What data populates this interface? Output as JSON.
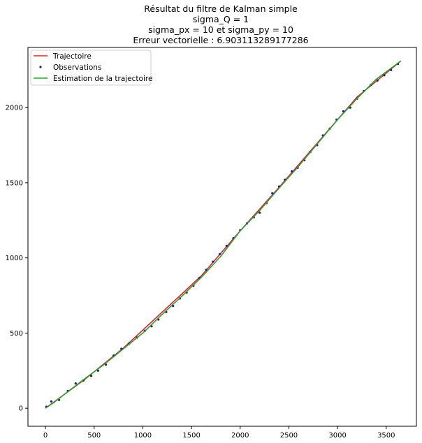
{
  "chart_data": {
    "type": "line",
    "title_lines": [
      "Résultat du filtre de Kalman simple",
      "sigma_Q = 1",
      "sigma_px = 10 et sigma_py = 10",
      "Erreur vectorielle : 6.903113289177286"
    ],
    "xlabel": "",
    "ylabel": "",
    "xlim": [
      -180,
      3810
    ],
    "ylim": [
      -120,
      2400
    ],
    "xticks": [
      0,
      500,
      1000,
      1500,
      2000,
      2500,
      3000,
      3500
    ],
    "yticks": [
      0,
      500,
      1000,
      1500,
      2000
    ],
    "grid": false,
    "legend_position": "top-left",
    "series": [
      {
        "name": "Trajectoire",
        "kind": "line",
        "color": "#d62728",
        "x": [
          0,
          400,
          800,
          1200,
          1600,
          2000,
          2400,
          2800,
          3200,
          3650
        ],
        "y": [
          0,
          190,
          400,
          640,
          880,
          1180,
          1470,
          1770,
          2070,
          2310
        ]
      },
      {
        "name": "Observations",
        "kind": "scatter",
        "color": "#1a1a9e",
        "x": [
          10,
          60,
          140,
          230,
          310,
          390,
          470,
          540,
          620,
          700,
          780,
          860,
          940,
          1020,
          1090,
          1160,
          1240,
          1310,
          1380,
          1450,
          1520,
          1580,
          1650,
          1720,
          1790,
          1860,
          1930,
          2000,
          2070,
          2140,
          2200,
          2270,
          2330,
          2400,
          2460,
          2530,
          2590,
          2660,
          2720,
          2790,
          2850,
          2920,
          2990,
          3060,
          3130,
          3200,
          3270,
          3340,
          3410,
          3480,
          3550,
          3620
        ],
        "y": [
          10,
          45,
          55,
          115,
          165,
          185,
          215,
          250,
          290,
          350,
          395,
          430,
          470,
          515,
          545,
          590,
          640,
          680,
          730,
          770,
          815,
          865,
          920,
          975,
          1025,
          1080,
          1130,
          1185,
          1230,
          1270,
          1300,
          1365,
          1430,
          1475,
          1520,
          1575,
          1600,
          1650,
          1705,
          1750,
          1815,
          1860,
          1920,
          1975,
          2000,
          2060,
          2110,
          2150,
          2180,
          2215,
          2250,
          2290
        ]
      },
      {
        "name": "Estimation de la trajectoire",
        "kind": "line",
        "color": "#2ca02c",
        "x": [
          0,
          80,
          200,
          400,
          600,
          800,
          1000,
          1200,
          1400,
          1600,
          1800,
          2000,
          2200,
          2400,
          2600,
          2800,
          3000,
          3200,
          3400,
          3650
        ],
        "y": [
          0,
          35,
          95,
          195,
          290,
          395,
          500,
          625,
          745,
          870,
          1010,
          1180,
          1315,
          1465,
          1610,
          1765,
          1920,
          2060,
          2190,
          2310
        ]
      }
    ]
  }
}
